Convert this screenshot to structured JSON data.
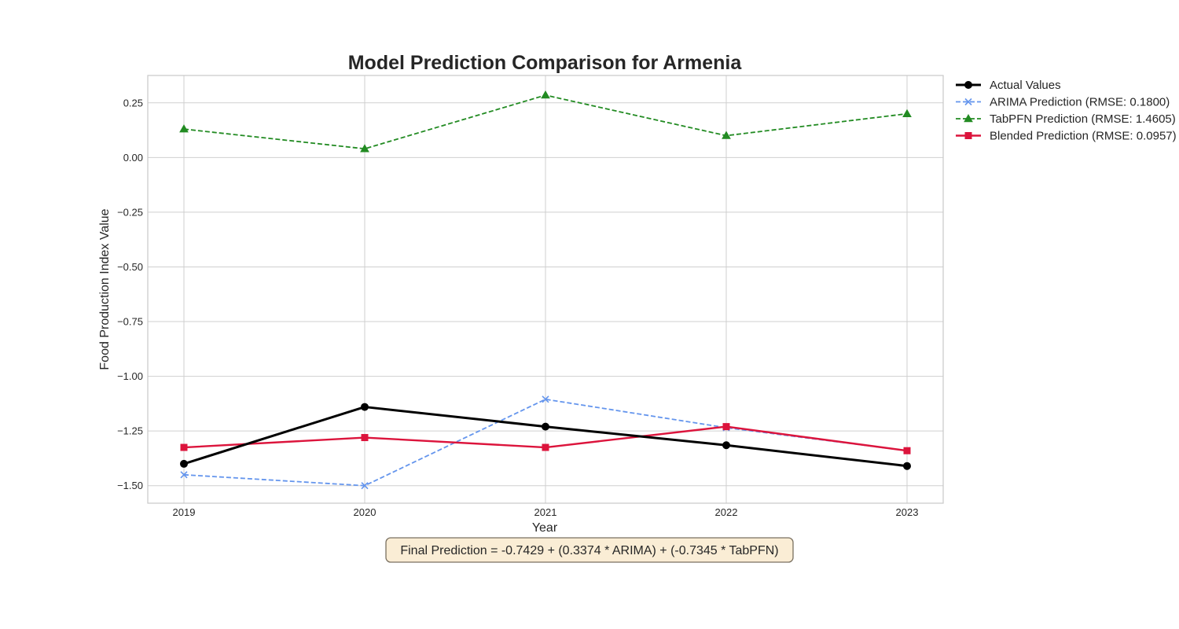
{
  "chart_data": {
    "type": "line",
    "title": "Model Prediction Comparison for Armenia",
    "xlabel": "Year",
    "ylabel": "Food Production Index Value",
    "x": [
      2019,
      2020,
      2021,
      2022,
      2023
    ],
    "x_tick_labels": [
      "2019",
      "2020",
      "2021",
      "2022",
      "2023"
    ],
    "xlim": [
      2018.8,
      2023.2
    ],
    "ylim": [
      -1.58,
      0.375
    ],
    "y_ticks": [
      0.25,
      0.0,
      -0.25,
      -0.5,
      -0.75,
      -1.0,
      -1.25,
      -1.5
    ],
    "y_tick_labels": [
      "0.25",
      "0.00",
      "−0.25",
      "−0.50",
      "−0.75",
      "−1.00",
      "−1.25",
      "−1.50"
    ],
    "grid": true,
    "legend_position": "outside-top-right",
    "series": [
      {
        "name": "Actual Values",
        "values": [
          -1.4,
          -1.14,
          -1.23,
          -1.315,
          -1.41
        ],
        "color": "#000000",
        "line_style": "solid",
        "marker": "circle"
      },
      {
        "name": "ARIMA Prediction (RMSE: 0.1800)",
        "values": [
          -1.45,
          -1.5,
          -1.105,
          -1.235,
          -1.34
        ],
        "color": "#6495ED",
        "line_style": "dashed",
        "marker": "x"
      },
      {
        "name": "TabPFN Prediction (RMSE: 1.4605)",
        "values": [
          0.13,
          0.04,
          0.285,
          0.1,
          0.2
        ],
        "color": "#228B22",
        "line_style": "dashed",
        "marker": "triangle"
      },
      {
        "name": "Blended Prediction (RMSE: 0.0957)",
        "values": [
          -1.325,
          -1.28,
          -1.325,
          -1.23,
          -1.34
        ],
        "color": "#DC143C",
        "line_style": "solid",
        "marker": "square"
      }
    ],
    "annotation": "Final Prediction = -0.7429 + (0.3374 * ARIMA) + (-0.7345 * TabPFN)",
    "annotation_box_color": "#F5DEB3"
  }
}
